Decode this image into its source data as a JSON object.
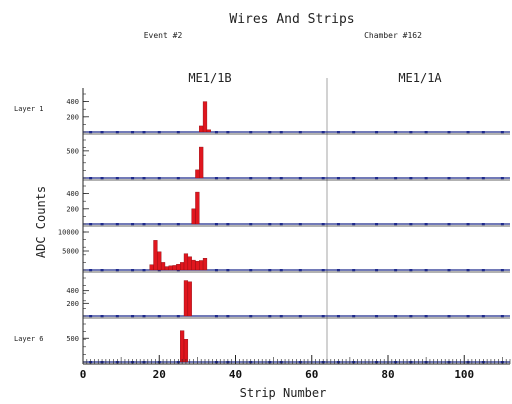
{
  "chart_data": {
    "type": "bar",
    "title": "Wires And Strips",
    "event_label": "Event #2",
    "chamber_label": "Chamber #162",
    "regions": [
      "ME1/1B",
      "ME1/1A"
    ],
    "region_divider_x": 64,
    "xlabel": "Strip Number",
    "ylabel": "ADC Counts",
    "xlim": [
      0,
      112
    ],
    "xticks": [
      0,
      20,
      40,
      60,
      80,
      100
    ],
    "grid": false,
    "bar_color": "#e0161e",
    "baseline_color": "#1e2a8c",
    "layers": [
      {
        "name": "Layer 1",
        "ylim": [
          0,
          500
        ],
        "yticks": [
          400,
          200
        ],
        "bars": [
          {
            "x": 31,
            "y": 80
          },
          {
            "x": 32,
            "y": 400
          },
          {
            "x": 33,
            "y": 30
          }
        ]
      },
      {
        "name": "",
        "ylim": [
          0,
          700
        ],
        "yticks": [
          500
        ],
        "bars": [
          {
            "x": 30,
            "y": 150
          },
          {
            "x": 31,
            "y": 570
          }
        ]
      },
      {
        "name": "",
        "ylim": [
          0,
          500
        ],
        "yticks": [
          400,
          200
        ],
        "bars": [
          {
            "x": 29,
            "y": 200
          },
          {
            "x": 30,
            "y": 420
          }
        ]
      },
      {
        "name": "",
        "ylim": [
          0,
          10000
        ],
        "yticks": [
          10000,
          5000
        ],
        "bars": [
          {
            "x": 18,
            "y": 1400
          },
          {
            "x": 19,
            "y": 7800
          },
          {
            "x": 20,
            "y": 4800
          },
          {
            "x": 21,
            "y": 2000
          },
          {
            "x": 22,
            "y": 900
          },
          {
            "x": 23,
            "y": 1100
          },
          {
            "x": 24,
            "y": 1200
          },
          {
            "x": 25,
            "y": 1500
          },
          {
            "x": 26,
            "y": 2000
          },
          {
            "x": 27,
            "y": 4300
          },
          {
            "x": 28,
            "y": 3500
          },
          {
            "x": 29,
            "y": 2600
          },
          {
            "x": 30,
            "y": 2300
          },
          {
            "x": 31,
            "y": 2500
          },
          {
            "x": 32,
            "y": 3100
          }
        ]
      },
      {
        "name": "",
        "ylim": [
          0,
          600
        ],
        "yticks": [
          400,
          200
        ],
        "bars": [
          {
            "x": 27,
            "y": 560
          },
          {
            "x": 28,
            "y": 540
          }
        ]
      },
      {
        "name": "Layer 6",
        "ylim": [
          0,
          800
        ],
        "yticks": [
          500
        ],
        "bars": [
          {
            "x": 26,
            "y": 660
          },
          {
            "x": 27,
            "y": 480
          }
        ]
      }
    ],
    "baseline_dots": [
      2,
      5,
      9,
      13,
      16,
      20,
      25,
      35,
      38,
      44,
      49,
      52,
      57,
      63,
      67,
      71,
      77,
      82,
      86,
      90,
      96,
      101,
      105,
      110
    ]
  }
}
